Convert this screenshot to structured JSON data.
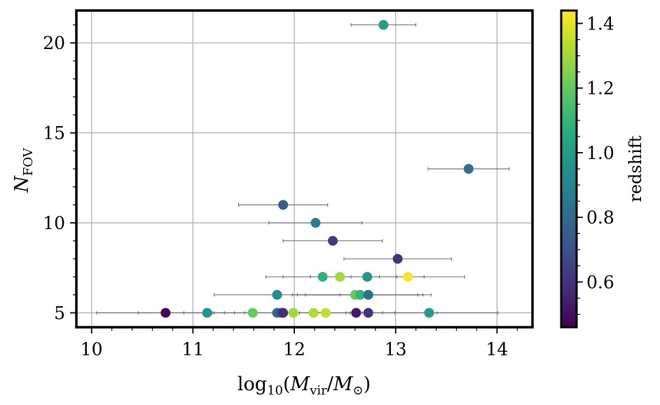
{
  "chart_data": {
    "type": "scatter",
    "xlabel": "log10(Mvir/M⊙)",
    "ylabel": "NFOV",
    "xlim": [
      9.85,
      14.35
    ],
    "ylim": [
      4.2,
      21.8
    ],
    "x_ticks": [
      "10",
      "11",
      "12",
      "13",
      "14"
    ],
    "y_ticks": [
      "5",
      "10",
      "15",
      "20"
    ],
    "grid": true,
    "colorbar": {
      "label": "redshift",
      "colormap": "viridis",
      "range": [
        0.46,
        1.44
      ],
      "ticks": [
        "0.6",
        "0.8",
        "1.0",
        "1.2",
        "1.4"
      ]
    },
    "points": [
      {
        "x": 12.88,
        "y": 21,
        "xerr": [
          0.32,
          0.32
        ],
        "z": 1.0
      },
      {
        "x": 13.72,
        "y": 13,
        "xerr": [
          0.4,
          0.4
        ],
        "z": 0.82
      },
      {
        "x": 11.89,
        "y": 11,
        "xerr": [
          0.44,
          0.44
        ],
        "z": 0.75
      },
      {
        "x": 12.21,
        "y": 10,
        "xerr": [
          0.46,
          0.46
        ],
        "z": 0.88
      },
      {
        "x": 12.38,
        "y": 9,
        "xerr": [
          0.49,
          0.49
        ],
        "z": 0.62
      },
      {
        "x": 13.02,
        "y": 8,
        "xerr": [
          0.53,
          0.53
        ],
        "z": 0.6
      },
      {
        "x": 12.28,
        "y": 7,
        "xerr": [
          0.56,
          0.56
        ],
        "z": 1.08
      },
      {
        "x": 12.45,
        "y": 7,
        "xerr": [
          0.56,
          0.56
        ],
        "z": 1.3
      },
      {
        "x": 12.72,
        "y": 7,
        "xerr": [
          0.56,
          0.56
        ],
        "z": 0.98
      },
      {
        "x": 13.12,
        "y": 7,
        "xerr": [
          0.56,
          0.56
        ],
        "z": 1.43
      },
      {
        "x": 11.83,
        "y": 6,
        "xerr": [
          0.62,
          0.62
        ],
        "z": 0.93
      },
      {
        "x": 12.6,
        "y": 6,
        "xerr": [
          0.62,
          0.62
        ],
        "z": 1.2
      },
      {
        "x": 12.65,
        "y": 6,
        "xerr": [
          0.62,
          0.62
        ],
        "z": 1.1
      },
      {
        "x": 12.73,
        "y": 6,
        "xerr": [
          0.62,
          0.62
        ],
        "z": 0.82
      },
      {
        "x": 10.73,
        "y": 5,
        "xerr": [
          0.68,
          0.68
        ],
        "z": 0.47
      },
      {
        "x": 11.14,
        "y": 5,
        "xerr": [
          0.68,
          0.68
        ],
        "z": 0.97
      },
      {
        "x": 11.59,
        "y": 5,
        "xerr": [
          0.68,
          0.68
        ],
        "z": 1.2
      },
      {
        "x": 11.83,
        "y": 5,
        "xerr": [
          0.68,
          0.68
        ],
        "z": 0.78
      },
      {
        "x": 11.87,
        "y": 5,
        "xerr": [
          0.68,
          0.68
        ],
        "z": 0.72
      },
      {
        "x": 11.89,
        "y": 5,
        "xerr": [
          0.68,
          0.68
        ],
        "z": 0.58
      },
      {
        "x": 11.99,
        "y": 5,
        "xerr": [
          0.68,
          0.68
        ],
        "z": 1.3
      },
      {
        "x": 12.19,
        "y": 5,
        "xerr": [
          0.68,
          0.68
        ],
        "z": 1.32
      },
      {
        "x": 12.31,
        "y": 5,
        "xerr": [
          0.68,
          0.68
        ],
        "z": 1.35
      },
      {
        "x": 12.61,
        "y": 5,
        "xerr": [
          0.68,
          0.68
        ],
        "z": 0.52
      },
      {
        "x": 12.73,
        "y": 5,
        "xerr": [
          0.68,
          0.68
        ],
        "z": 0.6
      },
      {
        "x": 13.33,
        "y": 5,
        "xerr": [
          0.68,
          0.68
        ],
        "z": 1.0
      }
    ]
  }
}
